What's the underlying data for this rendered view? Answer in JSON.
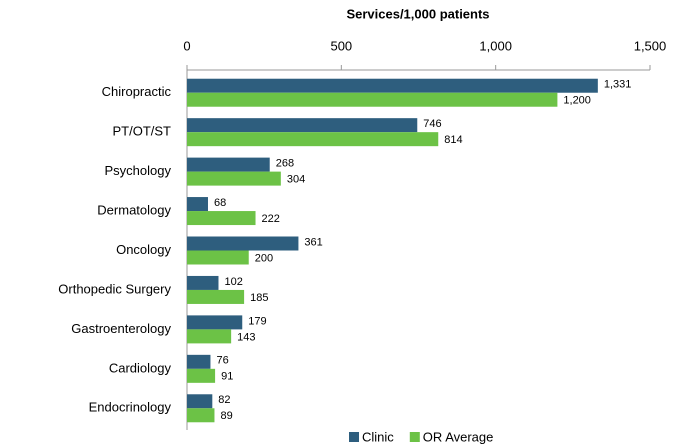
{
  "chart_data": {
    "type": "bar",
    "orientation": "horizontal",
    "xlabel": "Services/1,000 patients",
    "categories": [
      "Chiropractic",
      "PT/OT/ST",
      "Psychology",
      "Dermatology",
      "Oncology",
      "Orthopedic Surgery",
      "Gastroenterology",
      "Cardiology",
      "Endocrinology"
    ],
    "series": [
      {
        "name": "Clinic",
        "color": "#2e5e7e",
        "values": [
          1331,
          746,
          268,
          68,
          361,
          102,
          179,
          76,
          82
        ],
        "value_labels": [
          "1,331",
          "746",
          "268",
          "68",
          "361",
          "102",
          "179",
          "76",
          "82"
        ]
      },
      {
        "name": "OR Average",
        "color": "#6cc246",
        "values": [
          1200,
          814,
          304,
          222,
          200,
          185,
          143,
          91,
          89
        ],
        "value_labels": [
          "1,200",
          "814",
          "304",
          "222",
          "200",
          "185",
          "143",
          "91",
          "89"
        ]
      }
    ],
    "xlim": [
      0,
      1500
    ],
    "xticks": [
      0,
      500,
      {
        "value": 1000,
        "label": "1,000"
      },
      {
        "value": 1500,
        "label": "1,500"
      }
    ],
    "legend": "bottom"
  }
}
